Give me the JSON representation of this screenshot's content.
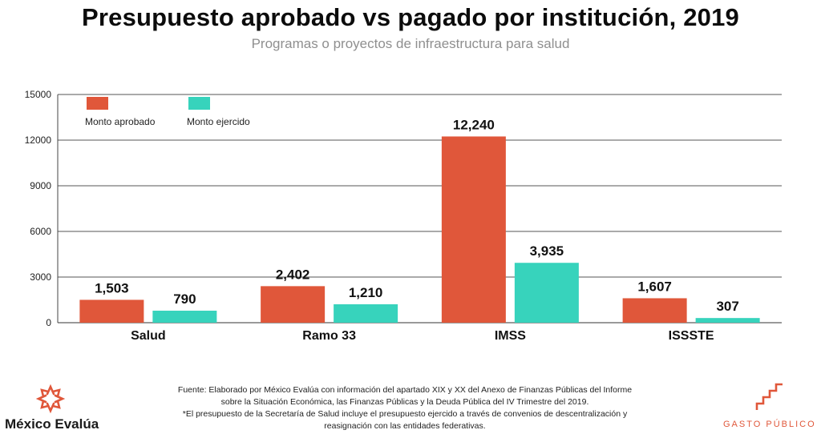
{
  "header": {
    "title": "Presupuesto aprobado vs pagado por institución, 2019",
    "subtitle": "Programas o proyectos de infraestructura para salud"
  },
  "chart_data": {
    "type": "bar",
    "categories": [
      "Salud",
      "Ramo 33",
      "IMSS",
      "ISSSTE"
    ],
    "series": [
      {
        "name": "Monto aprobado",
        "color": "#e0573a",
        "values": [
          1503,
          2402,
          12240,
          1607
        ],
        "labels": [
          "1,503",
          "2,402",
          "12,240",
          "1,607"
        ]
      },
      {
        "name": "Monto ejercido",
        "color": "#37d3bc",
        "values": [
          790,
          1210,
          3935,
          307
        ],
        "labels": [
          "790",
          "1,210",
          "3,935",
          "307"
        ]
      }
    ],
    "yticks": [
      "0",
      "3000",
      "6000",
      "9000",
      "12000",
      "15000"
    ],
    "ylim": [
      0,
      15000
    ],
    "grid": true,
    "legend": "top-left"
  },
  "footer": {
    "source_line1": "Fuente: Elaborado por México Evalúa con información del apartado XIX y XX del Anexo de Finanzas Públicas del Informe",
    "source_line2": "sobre la Situación Económica, las Finanzas Públicas y la Deuda Pública del IV Trimestre del 2019.",
    "note_line1": "*El presupuesto de la Secretaría de Salud incluye el presupuesto ejercido a través de convenios de descentralización y",
    "note_line2": "reasignación con las entidades federativas."
  },
  "logos": {
    "left_name": "México Evalúa",
    "left_icon": "mexico-evalua-star-logo",
    "right_name": "GASTO PÚBLICO",
    "right_icon": "gasto-publico-steps-logo"
  }
}
